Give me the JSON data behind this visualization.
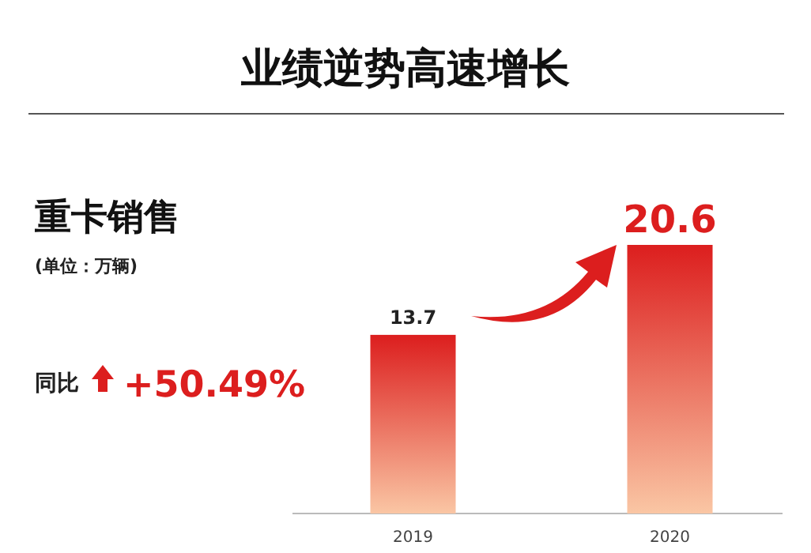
{
  "chart_data": {
    "type": "bar",
    "title": "业绩逆势高速增长",
    "subtitle": "重卡销售",
    "annotations": [
      "(单位：万辆)",
      "同比",
      "+50.49%"
    ],
    "categories": [
      "2019",
      "2020"
    ],
    "values": [
      13.7,
      20.6
    ],
    "color": "#dc1e1e",
    "data_labels": true
  }
}
